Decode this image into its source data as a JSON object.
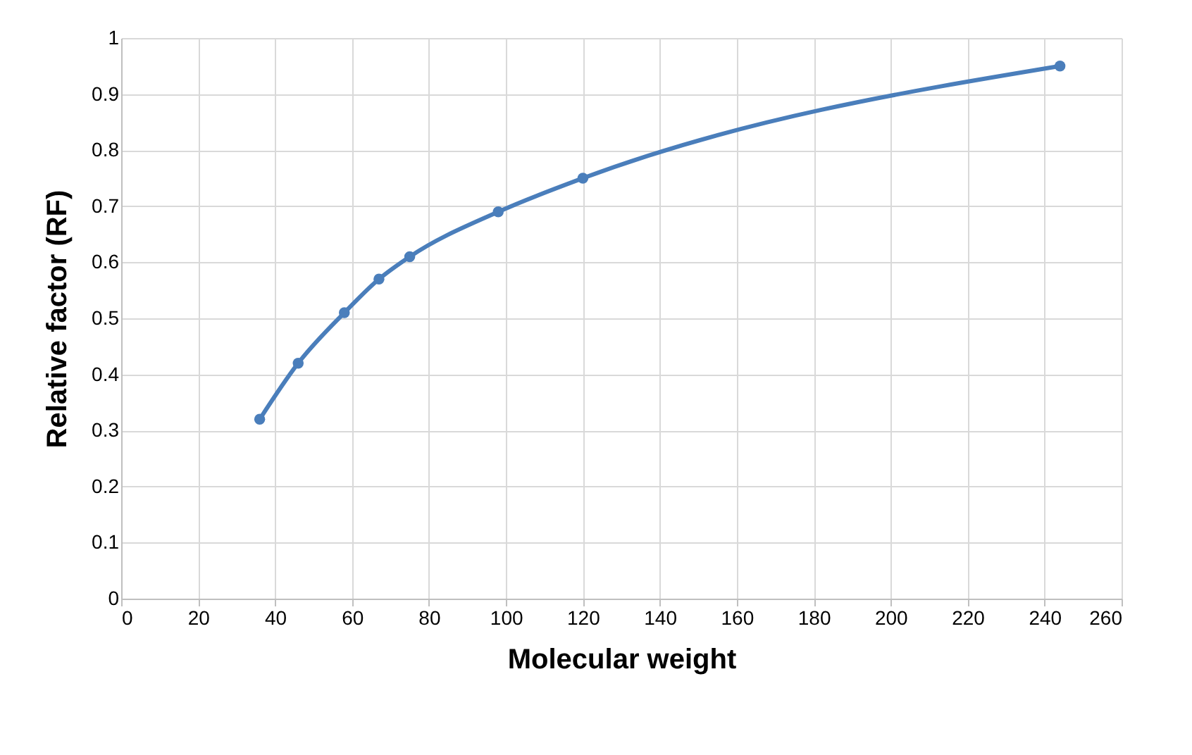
{
  "chart_data": {
    "type": "line",
    "xlabel": "Molecular weight",
    "ylabel": "Relative factor (RF)",
    "x": [
      36,
      46,
      58,
      67,
      75,
      98,
      120,
      244
    ],
    "series": [
      {
        "color": "#4a7ebb",
        "values": [
          0.32,
          0.42,
          0.51,
          0.57,
          0.61,
          0.69,
          0.75,
          0.95
        ]
      }
    ],
    "xlim": [
      0,
      260
    ],
    "xticks": [
      0,
      20,
      40,
      60,
      80,
      100,
      120,
      140,
      160,
      180,
      200,
      220,
      240,
      260
    ],
    "ylim": [
      0,
      1
    ],
    "yticks": [
      0,
      0.1,
      0.2,
      0.3,
      0.4,
      0.5,
      0.6,
      0.7,
      0.8,
      0.9,
      1
    ],
    "grid": true,
    "marker": "circle",
    "legend": false
  }
}
